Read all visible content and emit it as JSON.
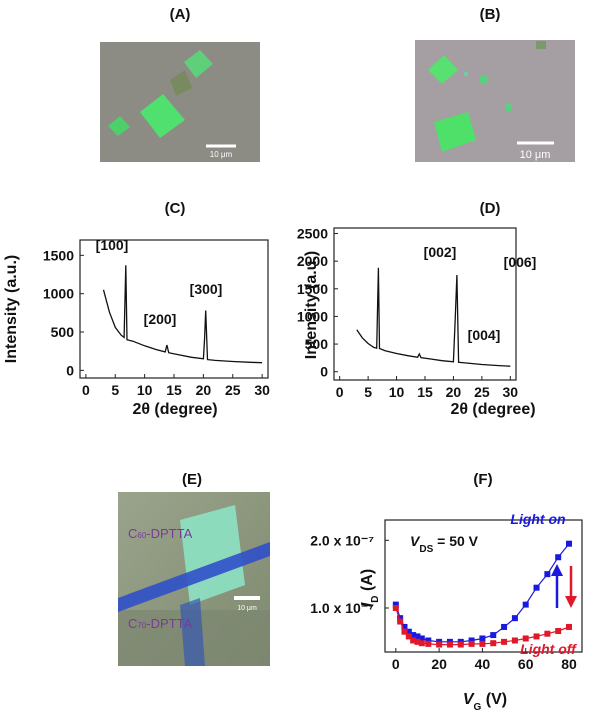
{
  "images": [
    {
      "label": "(A)",
      "scale_bar": "10 μm"
    },
    {
      "label": "(B)",
      "scale_bar": "10 μm"
    },
    {
      "label": "(E)",
      "scale_bar": "10 μm",
      "top_text": [
        "C",
        "60",
        "-DPTTA"
      ],
      "bottom_text": [
        "C",
        "70",
        "-DPTTA"
      ]
    }
  ],
  "chart_data": [
    {
      "type": "line",
      "title": "(C)",
      "x_label": "2θ (degree)",
      "y_label": "Intensity (a.u.)",
      "color": "#111111",
      "x": [
        3,
        4,
        5,
        6,
        6.5,
        6.8,
        7,
        8,
        10,
        12,
        13.5,
        13.8,
        14.1,
        16,
        18,
        20,
        20.2,
        20.4,
        20.7,
        22,
        25,
        28,
        30
      ],
      "values": [
        1050,
        760,
        560,
        460,
        430,
        1370,
        400,
        380,
        320,
        270,
        240,
        330,
        230,
        200,
        170,
        150,
        420,
        780,
        140,
        130,
        115,
        105,
        100
      ],
      "annotations": [
        "[100]",
        "[200]",
        "[300]"
      ],
      "xlim": [
        -1,
        31
      ],
      "ylim": [
        -100,
        1700
      ],
      "xticks": [
        0,
        5,
        10,
        15,
        20,
        25,
        30
      ],
      "yticks": [
        0,
        500,
        1000,
        1500
      ]
    },
    {
      "type": "line",
      "title": "(D)",
      "x_label": "2θ (degree)",
      "y_label": "Intensity (a.u.)",
      "color": "#111111",
      "x": [
        3,
        4,
        5,
        6,
        6.5,
        6.8,
        7,
        8,
        10,
        12,
        13.7,
        14,
        14.3,
        16,
        18,
        20,
        20.3,
        20.6,
        20.9,
        22,
        25,
        28,
        30
      ],
      "values": [
        760,
        610,
        510,
        440,
        425,
        1880,
        420,
        380,
        330,
        290,
        260,
        320,
        255,
        230,
        200,
        180,
        900,
        1750,
        170,
        160,
        130,
        110,
        100
      ],
      "annotations": [
        "[002]",
        "[004]",
        "[006]"
      ],
      "xlim": [
        -1,
        31
      ],
      "ylim": [
        -150,
        2600
      ],
      "xticks": [
        0,
        5,
        10,
        15,
        20,
        25,
        30
      ],
      "yticks": [
        0,
        500,
        1000,
        1500,
        2000,
        2500
      ]
    },
    {
      "type": "line",
      "title": "(F)",
      "x_label": [
        "V",
        "G",
        " (V)"
      ],
      "y_label": [
        "I",
        "D",
        " (A)"
      ],
      "annotations": [
        [
          "V",
          "DS",
          " = 50 V"
        ]
      ],
      "x": [
        0,
        2,
        4,
        6,
        8,
        10,
        12,
        15,
        20,
        25,
        30,
        35,
        40,
        45,
        50,
        55,
        60,
        65,
        70,
        75,
        80
      ],
      "series": [
        {
          "name": "Light on",
          "color": "#1a1adf",
          "values": [
            1.05e-07,
            8.5e-08,
            7.2e-08,
            6.5e-08,
            6e-08,
            5.8e-08,
            5.5e-08,
            5.2e-08,
            5e-08,
            5e-08,
            5e-08,
            5.2e-08,
            5.5e-08,
            6e-08,
            7.2e-08,
            8.5e-08,
            1.05e-07,
            1.3e-07,
            1.5e-07,
            1.75e-07,
            1.95e-07
          ]
        },
        {
          "name": "Light off",
          "color": "#e0182a",
          "values": [
            1e-07,
            8e-08,
            6.5e-08,
            5.8e-08,
            5.2e-08,
            5e-08,
            4.8e-08,
            4.7e-08,
            4.6e-08,
            4.6e-08,
            4.6e-08,
            4.7e-08,
            4.7e-08,
            4.8e-08,
            5e-08,
            5.2e-08,
            5.5e-08,
            5.8e-08,
            6.2e-08,
            6.6e-08,
            7.2e-08
          ]
        }
      ],
      "xlim": [
        -5,
        86
      ],
      "ylim": [
        3.5e-08,
        2.3e-07
      ],
      "xticks": [
        0,
        20,
        40,
        60,
        80
      ],
      "yticks": [
        {
          "value": 1e-07,
          "label": "1.0 x 10⁻⁷"
        },
        {
          "value": 2e-07,
          "label": "2.0 x 10⁻⁷"
        }
      ]
    }
  ]
}
